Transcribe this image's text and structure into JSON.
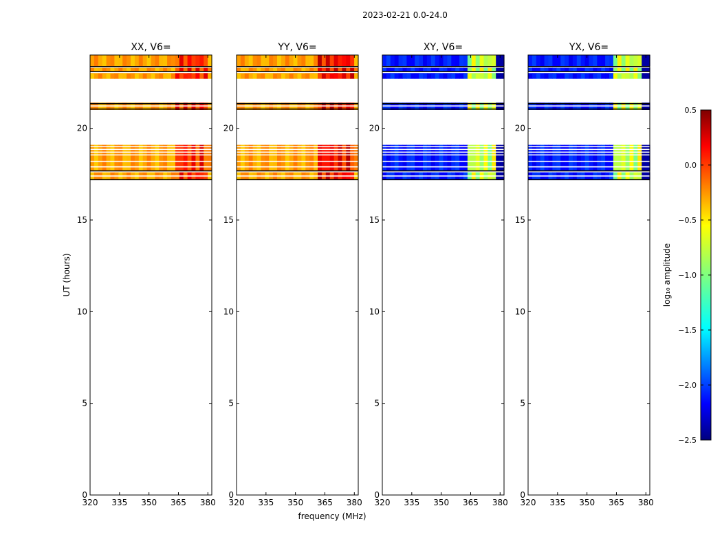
{
  "suptitle": "2023-02-21 0.0-24.0",
  "chart_data": {
    "type": "heatmap",
    "xlabel": "frequency (MHz)",
    "ylabel": "UT (hours)",
    "xlim": [
      320,
      382
    ],
    "ylim": [
      0,
      24
    ],
    "xticks": [
      "320",
      "335",
      "350",
      "365",
      "380"
    ],
    "xtick_values": [
      320,
      335,
      350,
      365,
      380
    ],
    "yticks": [
      "0",
      "5",
      "10",
      "15",
      "20"
    ],
    "ytick_values": [
      0,
      5,
      10,
      15,
      20
    ],
    "colorbar": {
      "label": "log₁₀ amplitude",
      "ticks": [
        "0.5",
        "0.0",
        "−0.5",
        "−1.0",
        "−1.5",
        "−2.0",
        "−2.5"
      ],
      "tick_values": [
        0.5,
        0.0,
        -0.5,
        -1.0,
        -1.5,
        -2.0,
        -2.5
      ],
      "range": [
        -2.5,
        0.5
      ],
      "colormap": "jet"
    },
    "time_bands": [
      {
        "start": 23.4,
        "end": 24.0
      },
      {
        "start": 23.0,
        "end": 23.3
      },
      {
        "start": 22.7,
        "end": 23.0
      },
      {
        "start": 21.0,
        "end": 21.4
      },
      {
        "start": 17.7,
        "end": 19.1
      },
      {
        "start": 17.2,
        "end": 17.6
      }
    ],
    "blank_lines_hours": [
      23.35,
      23.05,
      21.22,
      19.0,
      18.85,
      18.7,
      18.55,
      18.2,
      17.9,
      17.4
    ],
    "black_lines_hours": [
      23.37,
      23.1,
      21.35,
      21.05,
      17.68,
      17.2
    ],
    "panels": [
      {
        "title": "XX, V6=",
        "pol": "XX",
        "base_level": -0.35,
        "hot_level": 0.0,
        "hot_range_mhz": [
          363,
          380
        ],
        "dark_range_mhz": [
          381,
          382
        ]
      },
      {
        "title": "YY, V6=",
        "pol": "YY",
        "base_level": -0.35,
        "hot_level": 0.1,
        "hot_range_mhz": [
          362,
          380
        ],
        "dark_range_mhz": [
          381,
          382
        ]
      },
      {
        "title": "XY, V6=",
        "pol": "XY",
        "base_level": -2.05,
        "hot_level": -0.8,
        "hot_range_mhz": [
          363,
          377
        ],
        "dark_range_mhz": [
          378,
          382
        ]
      },
      {
        "title": "YX, V6=",
        "pol": "YX",
        "base_level": -2.05,
        "hot_level": -0.8,
        "hot_range_mhz": [
          363,
          377
        ],
        "dark_range_mhz": [
          378,
          382
        ]
      }
    ]
  }
}
